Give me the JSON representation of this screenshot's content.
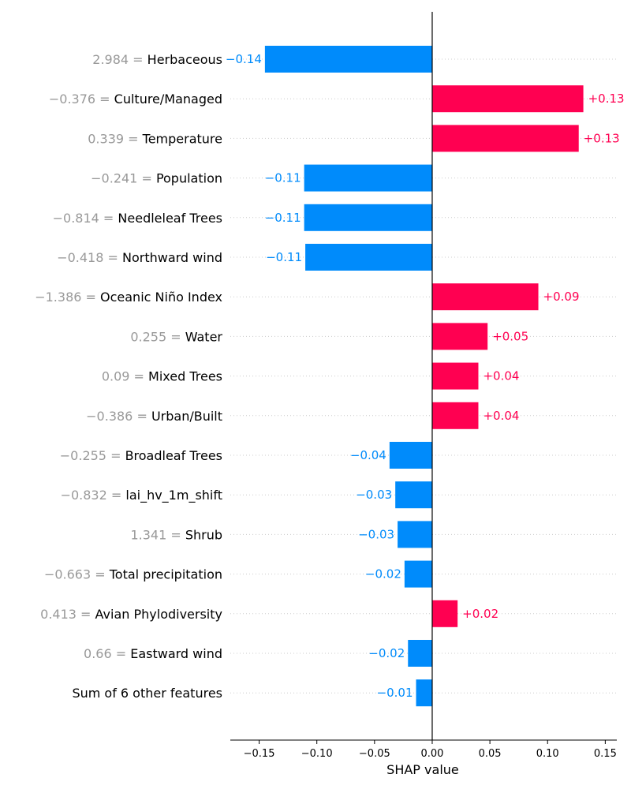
{
  "chart_data": {
    "type": "bar",
    "orientation": "horizontal",
    "title": "",
    "xlabel": "SHAP value",
    "ylabel": "",
    "xlim": [
      -0.175,
      0.16
    ],
    "xticks": [
      -0.15,
      -0.1,
      -0.05,
      0.0,
      0.05,
      0.1,
      0.15
    ],
    "xtick_labels": [
      "−0.15",
      "−0.10",
      "−0.05",
      "0.00",
      "0.05",
      "0.10",
      "0.15"
    ],
    "grid": false,
    "colors": {
      "positive": "#ff0051",
      "negative": "#008bfb",
      "feature_value": "#999999",
      "feature_name": "#000000"
    },
    "features": [
      {
        "value_text": "2.984",
        "name": "Herbaceous",
        "shap": -0.145,
        "label": "−0.14"
      },
      {
        "value_text": "−0.376",
        "name": "Culture/Managed",
        "shap": 0.131,
        "label": "+0.13"
      },
      {
        "value_text": "0.339",
        "name": "Temperature",
        "shap": 0.127,
        "label": "+0.13"
      },
      {
        "value_text": "−0.241",
        "name": "Population",
        "shap": -0.111,
        "label": "−0.11"
      },
      {
        "value_text": "−0.814",
        "name": "Needleleaf Trees",
        "shap": -0.111,
        "label": "−0.11"
      },
      {
        "value_text": "−0.418",
        "name": "Northward wind",
        "shap": -0.11,
        "label": "−0.11"
      },
      {
        "value_text": "−1.386",
        "name": "Oceanic Niño Index",
        "shap": 0.092,
        "label": "+0.09"
      },
      {
        "value_text": "0.255",
        "name": "Water",
        "shap": 0.048,
        "label": "+0.05"
      },
      {
        "value_text": "0.09",
        "name": "Mixed Trees",
        "shap": 0.04,
        "label": "+0.04"
      },
      {
        "value_text": "−0.386",
        "name": "Urban/Built",
        "shap": 0.04,
        "label": "+0.04"
      },
      {
        "value_text": "−0.255",
        "name": "Broadleaf Trees",
        "shap": -0.037,
        "label": "−0.04"
      },
      {
        "value_text": "−0.832",
        "name": "lai_hv_1m_shift",
        "shap": -0.032,
        "label": "−0.03"
      },
      {
        "value_text": "1.341",
        "name": "Shrub",
        "shap": -0.03,
        "label": "−0.03"
      },
      {
        "value_text": "−0.663",
        "name": "Total precipitation",
        "shap": -0.024,
        "label": "−0.02"
      },
      {
        "value_text": "0.413",
        "name": "Avian Phylodiversity",
        "shap": 0.022,
        "label": "+0.02"
      },
      {
        "value_text": "0.66",
        "name": "Eastward wind",
        "shap": -0.021,
        "label": "−0.02"
      },
      {
        "value_text": "",
        "name": "Sum of 6 other features",
        "shap": -0.014,
        "label": "−0.01"
      }
    ]
  }
}
